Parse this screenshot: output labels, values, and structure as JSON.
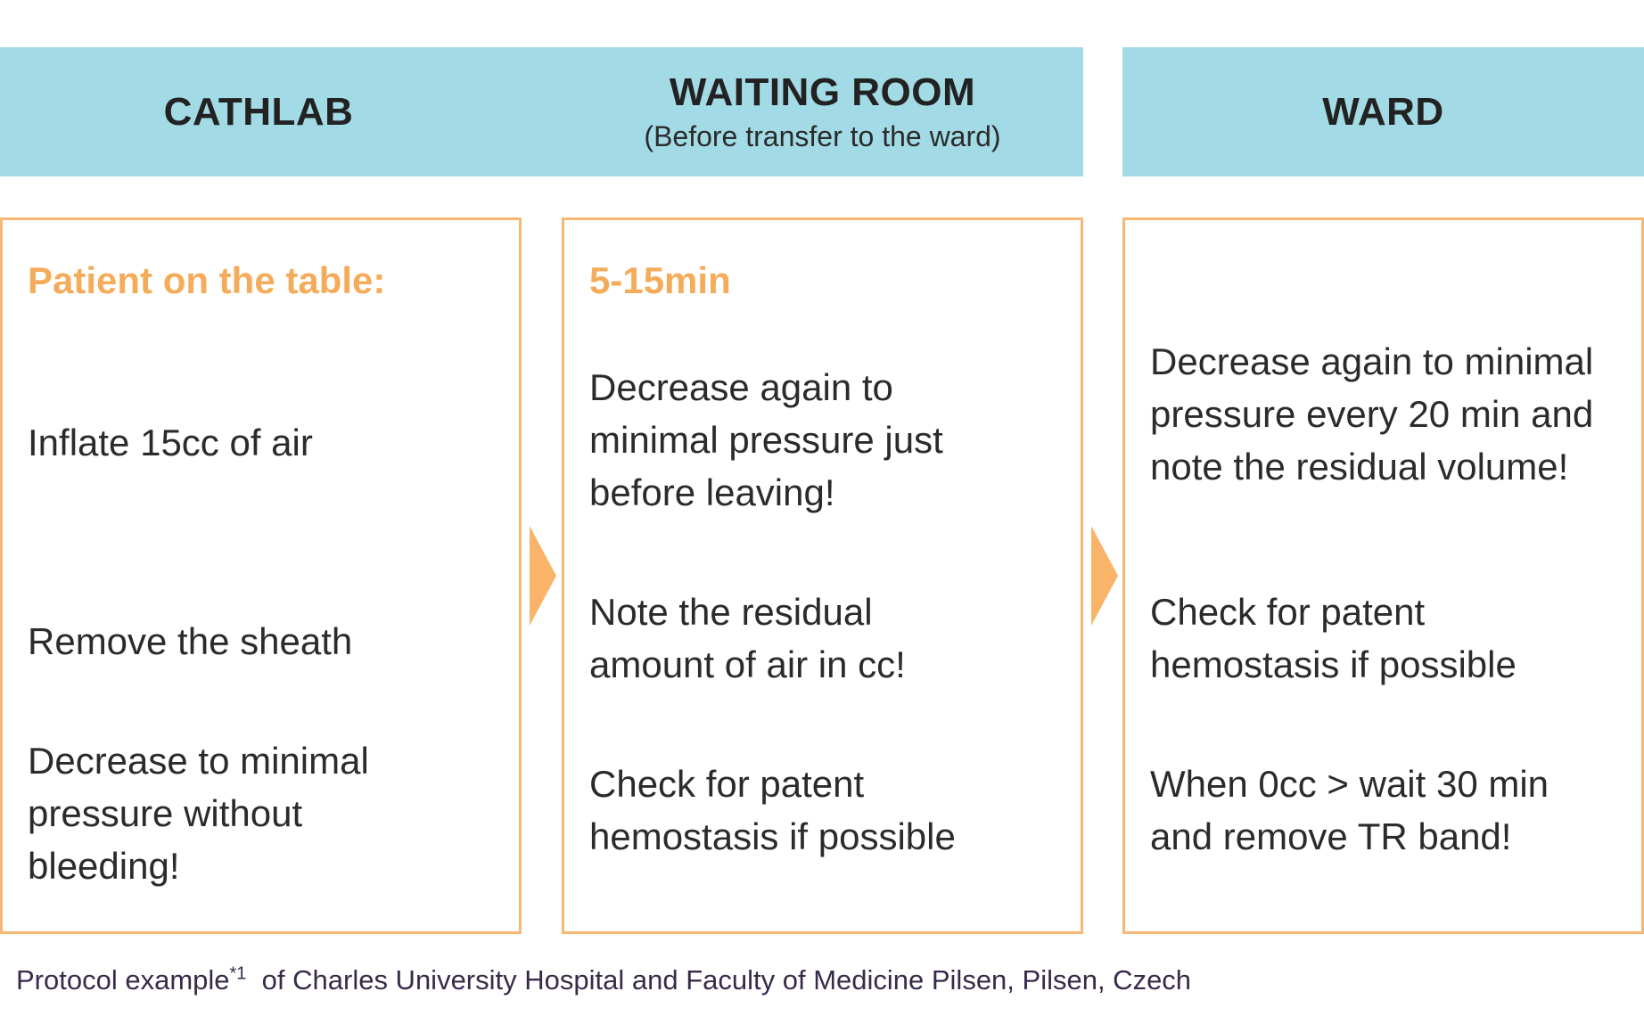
{
  "headers": {
    "cathlab": "CATHLAB",
    "waiting_room": "WAITING ROOM",
    "waiting_room_sub": "(Before transfer to the ward)",
    "ward": "WARD"
  },
  "panels": {
    "cathlab": {
      "heading": "Patient on the table:",
      "steps": [
        "Inflate 15cc of air",
        "Remove the sheath",
        "Decrease to minimal pressure without bleeding!"
      ]
    },
    "waiting_room": {
      "heading": "5-15min",
      "steps": [
        "Decrease again to minimal pressure just before leaving!",
        "Note the residual amount of air in cc!",
        "Check for patent hemostasis if possible"
      ]
    },
    "ward": {
      "steps": [
        "Decrease again to minimal pressure every 20 min and note the residual volume!",
        "Check for patent hemostasis if possible",
        "When 0cc > wait 30 min and remove TR band!"
      ]
    }
  },
  "footnote": {
    "prefix": "Protocol example",
    "marker": "*1",
    "suffix": "of Charles University Hospital and Faculty of Medicine Pilsen, Pilsen, Czech"
  },
  "colors": {
    "header_band": "#a2dbe6",
    "panel_border": "#f6b872",
    "heading_accent": "#f5ac5a",
    "arrow": "#f9b46a"
  }
}
